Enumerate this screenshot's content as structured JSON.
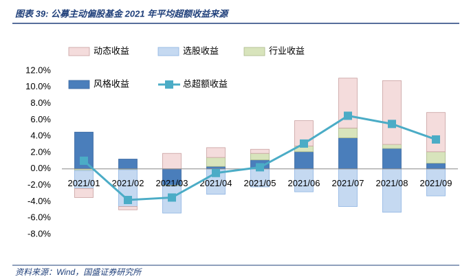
{
  "chart_data": {
    "type": "bar",
    "stacked": true,
    "title": "图表 39: 公募主动偏股基金 2021 年平均超额收益来源",
    "source": "资料来源：Wind，国盛证券研究所",
    "categories": [
      "2021/01",
      "2021/02",
      "2021/03",
      "2021/04",
      "2021/05",
      "2021/06",
      "2021/07",
      "2021/08",
      "2021/09"
    ],
    "series": [
      {
        "name": "风格收益",
        "type": "bar",
        "color": "#4a7ebb",
        "stroke": "#3a68a0",
        "values": [
          4.5,
          1.2,
          -2.0,
          0.3,
          1.1,
          2.1,
          3.8,
          2.5,
          0.7
        ]
      },
      {
        "name": "行业收益",
        "type": "bar",
        "color": "#d8e4bc",
        "stroke": "#aab98a",
        "values": [
          -0.2,
          -0.1,
          -0.1,
          1.1,
          0.8,
          0.7,
          1.2,
          0.5,
          1.4
        ]
      },
      {
        "name": "选股收益",
        "type": "bar",
        "color": "#c5d9f1",
        "stroke": "#8db3e2",
        "values": [
          -2.2,
          -4.5,
          -3.3,
          -3.1,
          -2.2,
          -2.8,
          -4.6,
          -5.3,
          -3.3
        ]
      },
      {
        "name": "动态收益",
        "type": "bar",
        "color": "#f4dcdc",
        "stroke": "#c9a0a0",
        "values": [
          -1.1,
          -0.4,
          1.9,
          1.2,
          0.5,
          3.1,
          6.1,
          7.8,
          4.8
        ]
      },
      {
        "name": "总超额收益",
        "type": "line",
        "color": "#4bacc6",
        "values": [
          1.0,
          -3.8,
          -3.5,
          -0.5,
          0.2,
          3.1,
          6.5,
          5.5,
          3.6
        ]
      }
    ],
    "legend_order": [
      3,
      2,
      1,
      0,
      4
    ],
    "ylim": [
      -8,
      12
    ],
    "yticks": [
      {
        "value": -8,
        "label": "-8.0%"
      },
      {
        "value": -6,
        "label": "-6.0%"
      },
      {
        "value": -4,
        "label": "-4.0%"
      },
      {
        "value": -2,
        "label": "-2.0%"
      },
      {
        "value": 0,
        "label": "0.0%"
      },
      {
        "value": 2,
        "label": "2.0%"
      },
      {
        "value": 4,
        "label": "4.0%"
      },
      {
        "value": 6,
        "label": "6.0%"
      },
      {
        "value": 8,
        "label": "8.0%"
      },
      {
        "value": 10,
        "label": "10.0%"
      },
      {
        "value": 12,
        "label": "12.0%"
      }
    ]
  }
}
